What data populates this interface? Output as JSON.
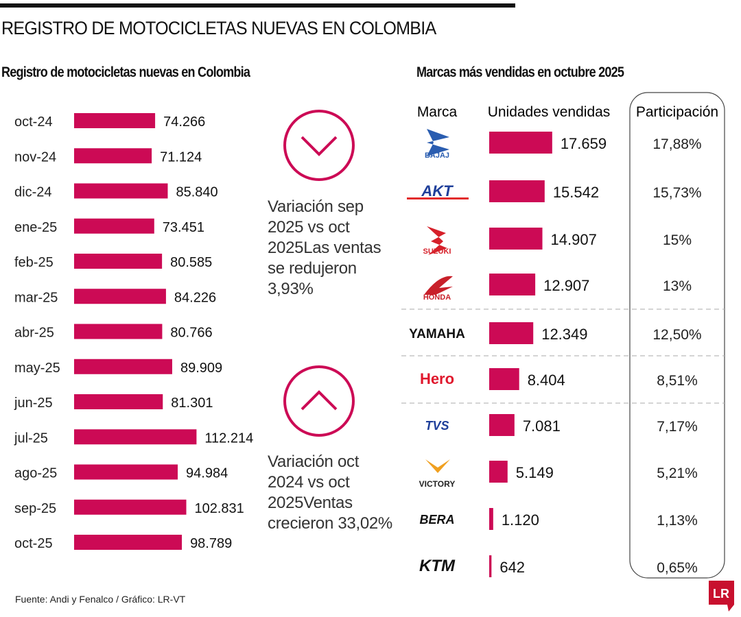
{
  "header": {
    "title": "REGISTRO DE MOTOCICLETAS NUEVAS EN COLOMBIA"
  },
  "notes": {
    "down": "Variación sep 2025 vs oct 2025Las ventas se redujeron 3,93%",
    "up": "Variación oct 2024 vs oct 2025Ventas crecieron 33,02%",
    "down_icon": "chevron-down-circle-icon",
    "up_icon": "chevron-up-circle-icon"
  },
  "footer": {
    "source": "Fuente: Andi y Fenalco / Gráfico: LR-VT",
    "logo_text": "LR"
  },
  "colors": {
    "bar": "#cc0a55",
    "logo": "#c8102e"
  },
  "chart_data": [
    {
      "type": "bar",
      "orientation": "horizontal",
      "title": "Registro de motocicletas nuevas en Colombia",
      "categories": [
        "oct-24",
        "nov-24",
        "dic-24",
        "ene-25",
        "feb-25",
        "mar-25",
        "abr-25",
        "may-25",
        "jun-25",
        "jul-25",
        "ago-25",
        "sep-25",
        "oct-25"
      ],
      "values": [
        74266,
        71124,
        85840,
        73451,
        80585,
        84226,
        80766,
        89909,
        81301,
        112214,
        94984,
        102831,
        98789
      ],
      "labels": [
        "74.266",
        "71.124",
        "85.840",
        "73.451",
        "80.585",
        "84.226",
        "80.766",
        "89.909",
        "81.301",
        "112.214",
        "94.984",
        "102.831",
        "98.789"
      ]
    },
    {
      "type": "bar",
      "orientation": "horizontal",
      "title": "Marcas más vendidas en octubre 2025",
      "columns": [
        "Marca",
        "Unidades vendidas",
        "Participación"
      ],
      "categories": [
        "Bajaj",
        "AKT",
        "Suzuki",
        "Honda",
        "Yamaha",
        "Hero",
        "TVS",
        "Victory",
        "Bera",
        "KTM"
      ],
      "values": [
        17659,
        15542,
        14907,
        12907,
        12349,
        8404,
        7081,
        5149,
        1120,
        642
      ],
      "labels": [
        "17.659",
        "15.542",
        "14.907",
        "12.907",
        "12.349",
        "8.404",
        "7.081",
        "5.149",
        "1.120",
        "642"
      ],
      "share": [
        "17,88%",
        "15,73%",
        "15%",
        "13%",
        "12,50%",
        "8,51%",
        "7,17%",
        "5,21%",
        "1,13%",
        "0,65%"
      ],
      "logo_text": [
        "BAJAJ",
        "AKT",
        "SUZUKI",
        "HONDA",
        "YAMAHA",
        "Hero",
        "TVS",
        "VICTORY",
        "BERA",
        "KTM"
      ]
    }
  ]
}
